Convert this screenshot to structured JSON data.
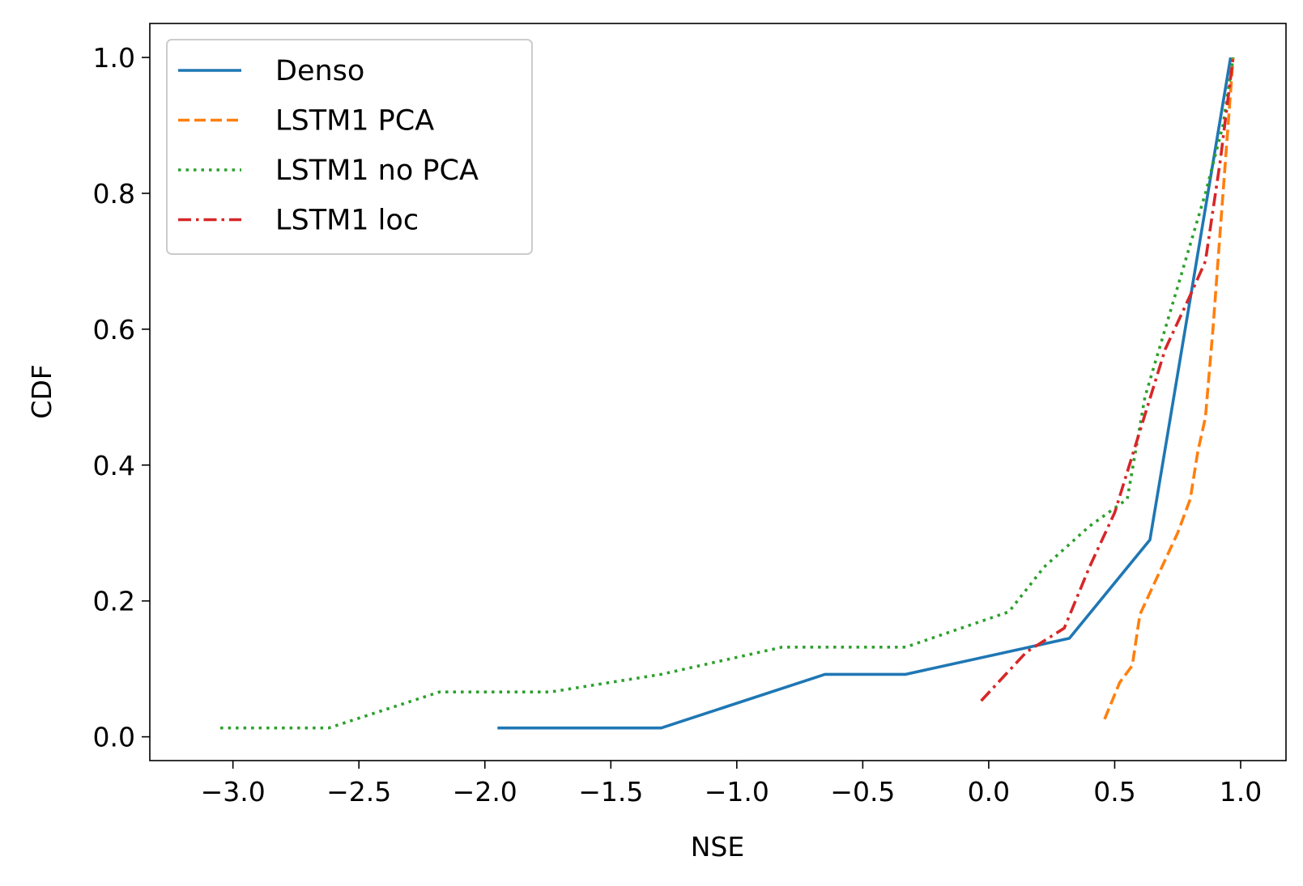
{
  "chart_data": {
    "type": "line",
    "title": "",
    "xlabel": "NSE",
    "ylabel": "CDF",
    "xlim": [
      -3.33,
      1.18
    ],
    "ylim": [
      -0.035,
      1.05
    ],
    "xticks": [
      -3.0,
      -2.5,
      -2.0,
      -1.5,
      -1.0,
      -0.5,
      0.0,
      0.5,
      1.0
    ],
    "xtick_labels": [
      "−3.0",
      "−2.5",
      "−2.0",
      "−1.5",
      "−1.0",
      "−0.5",
      "0.0",
      "0.5",
      "1.0"
    ],
    "yticks": [
      0.0,
      0.2,
      0.4,
      0.6,
      0.8,
      1.0
    ],
    "ytick_labels": [
      "0.0",
      "0.2",
      "0.4",
      "0.6",
      "0.8",
      "1.0"
    ],
    "grid": false,
    "legend_position": "upper-left",
    "series": [
      {
        "name": "Denso",
        "color": "#1f77b4",
        "dash": "solid",
        "x": [
          -1.95,
          -1.3,
          -0.65,
          -0.33,
          0.32,
          0.64,
          0.96
        ],
        "y": [
          0.013,
          0.013,
          0.092,
          0.092,
          0.145,
          0.29,
          1.0
        ]
      },
      {
        "name": "LSTM1 PCA",
        "color": "#ff7f0e",
        "dash": "dashed",
        "x": [
          0.46,
          0.52,
          0.57,
          0.6,
          0.65,
          0.75,
          0.8,
          0.83,
          0.86,
          0.89,
          0.92,
          0.95,
          0.97
        ],
        "y": [
          0.026,
          0.08,
          0.105,
          0.18,
          0.22,
          0.3,
          0.35,
          0.42,
          0.47,
          0.6,
          0.75,
          0.9,
          1.0
        ]
      },
      {
        "name": "LSTM1 no PCA",
        "color": "#2ca02c",
        "dash": "dotted",
        "x": [
          -3.05,
          -2.62,
          -2.18,
          -1.74,
          -1.3,
          -0.82,
          -0.33,
          0.08,
          0.22,
          0.4,
          0.55,
          0.62,
          0.7,
          0.78,
          0.86,
          0.93,
          0.97
        ],
        "y": [
          0.013,
          0.013,
          0.066,
          0.066,
          0.092,
          0.132,
          0.132,
          0.184,
          0.25,
          0.31,
          0.35,
          0.5,
          0.6,
          0.7,
          0.8,
          0.9,
          1.0
        ]
      },
      {
        "name": "LSTM1 loc",
        "color": "#d62728",
        "dash": "dashdot",
        "x": [
          -0.03,
          0.15,
          0.3,
          0.4,
          0.5,
          0.6,
          0.7,
          0.8,
          0.86,
          0.92,
          0.97
        ],
        "y": [
          0.053,
          0.125,
          0.16,
          0.25,
          0.33,
          0.45,
          0.57,
          0.65,
          0.7,
          0.85,
          1.0
        ]
      }
    ]
  }
}
